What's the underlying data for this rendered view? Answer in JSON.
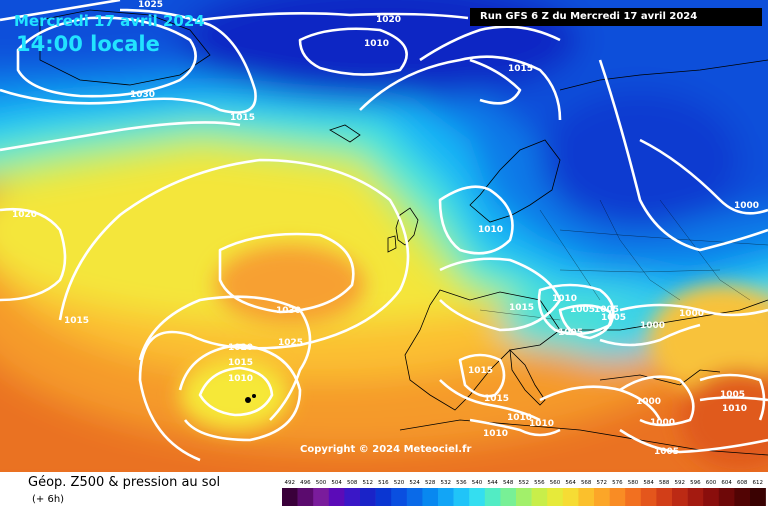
{
  "header": {
    "date": "Mercredi 17 avril 2024",
    "local_time": "14:00 locale",
    "run": "Run GFS 6 Z du Mercredi 17 avril 2024"
  },
  "copyright": "Copyright © 2024 Meteociel.fr",
  "footer": {
    "title": "Géop. Z500 & pression au sol",
    "subtitle": "(+ 6h)"
  },
  "scale": {
    "labels": [
      "492",
      "496",
      "500",
      "504",
      "508",
      "512",
      "516",
      "520",
      "524",
      "528",
      "532",
      "536",
      "540",
      "544",
      "548",
      "552",
      "556",
      "560",
      "564",
      "568",
      "572",
      "576",
      "580",
      "584",
      "588",
      "592",
      "596",
      "600",
      "604",
      "608",
      "612"
    ],
    "colors": [
      "#3a003a",
      "#5b0b6e",
      "#7a1c9c",
      "#5b0bb8",
      "#3a17c7",
      "#1a23c8",
      "#0a36d2",
      "#0a4fe0",
      "#0a6ae8",
      "#0888f0",
      "#12a5f6",
      "#20c4f8",
      "#34def0",
      "#52ecc4",
      "#78f096",
      "#a2f06a",
      "#c8ee4a",
      "#e6ea3a",
      "#f6dc34",
      "#fbc02c",
      "#fca628",
      "#f98c24",
      "#f27020",
      "#e4561c",
      "#d23e18",
      "#bc2a14",
      "#a41a10",
      "#8a0e0c",
      "#6e0808",
      "#520404",
      "#3a0202"
    ]
  },
  "map": {
    "isobar_labels": [
      "1025",
      "1020",
      "1010",
      "1015",
      "1030",
      "1015",
      "1020",
      "1015",
      "1010",
      "1000",
      "1030",
      "1025",
      "1020",
      "1015",
      "1010",
      "1015",
      "1010",
      "1005",
      "1005",
      "1005",
      "1005",
      "1000",
      "1000",
      "1015",
      "1015",
      "1010",
      "1010",
      "1010",
      "1000",
      "1000",
      "1005",
      "1005",
      "1010"
    ]
  }
}
